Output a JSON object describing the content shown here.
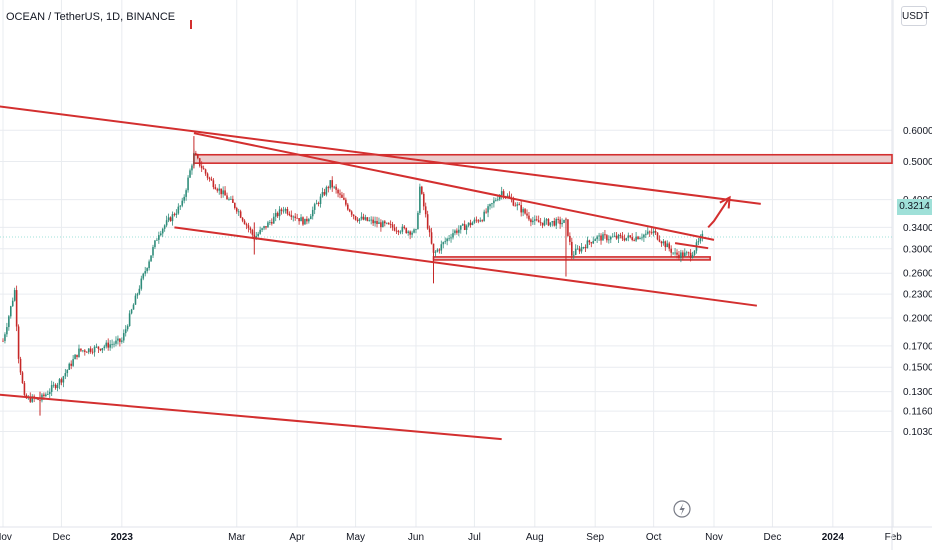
{
  "header": {
    "title": "OCEAN / TetherUS, 1D, BINANCE"
  },
  "currency_button": {
    "label": "USDT"
  },
  "last_price": "0.3214",
  "colors": {
    "background": "#ffffff",
    "trendline": "#d32f2f",
    "zone_fill": "#e8c4c4",
    "candle_up": "#2e8c7a",
    "candle_down": "#c62828",
    "price_tag": "#9fe0d8",
    "grid": "#e9ecf0"
  },
  "icons": {
    "flash": "flash-icon"
  },
  "chart_data": {
    "type": "candlestick",
    "title": "OCEAN / TetherUS, 1D, BINANCE",
    "y_axis": {
      "scale": "log",
      "ticks": [
        "0.6000",
        "0.5000",
        "0.4000",
        "0.3400",
        "0.3000",
        "0.2600",
        "0.2300",
        "0.2000",
        "0.1700",
        "0.1500",
        "0.1300",
        "0.1160",
        "0.1030"
      ]
    },
    "x_axis": {
      "ticks": [
        "Nov",
        "Dec",
        "2023",
        "Mar",
        "Apr",
        "May",
        "Jun",
        "Jul",
        "Aug",
        "Sep",
        "Oct",
        "Nov",
        "Dec",
        "2024",
        "Feb"
      ]
    },
    "price_path": [
      {
        "date": "2022-11-01",
        "price": 0.175
      },
      {
        "date": "2022-11-07",
        "price": 0.235
      },
      {
        "date": "2022-11-09",
        "price": 0.16
      },
      {
        "date": "2022-11-12",
        "price": 0.125
      },
      {
        "date": "2022-11-20",
        "price": 0.124
      },
      {
        "date": "2022-12-01",
        "price": 0.14
      },
      {
        "date": "2022-12-10",
        "price": 0.165
      },
      {
        "date": "2022-12-20",
        "price": 0.168
      },
      {
        "date": "2023-01-01",
        "price": 0.175
      },
      {
        "date": "2023-01-10",
        "price": 0.24
      },
      {
        "date": "2023-01-20",
        "price": 0.33
      },
      {
        "date": "2023-02-01",
        "price": 0.39
      },
      {
        "date": "2023-02-07",
        "price": 0.52
      },
      {
        "date": "2023-02-15",
        "price": 0.45
      },
      {
        "date": "2023-03-01",
        "price": 0.38
      },
      {
        "date": "2023-03-10",
        "price": 0.32
      },
      {
        "date": "2023-03-25",
        "price": 0.38
      },
      {
        "date": "2023-04-05",
        "price": 0.35
      },
      {
        "date": "2023-04-18",
        "price": 0.44
      },
      {
        "date": "2023-05-01",
        "price": 0.36
      },
      {
        "date": "2023-05-20",
        "price": 0.34
      },
      {
        "date": "2023-06-01",
        "price": 0.33
      },
      {
        "date": "2023-06-03",
        "price": 0.43
      },
      {
        "date": "2023-06-10",
        "price": 0.29
      },
      {
        "date": "2023-06-20",
        "price": 0.33
      },
      {
        "date": "2023-07-05",
        "price": 0.36
      },
      {
        "date": "2023-07-15",
        "price": 0.42
      },
      {
        "date": "2023-08-01",
        "price": 0.35
      },
      {
        "date": "2023-08-17",
        "price": 0.35
      },
      {
        "date": "2023-08-20",
        "price": 0.29
      },
      {
        "date": "2023-09-01",
        "price": 0.32
      },
      {
        "date": "2023-09-20",
        "price": 0.32
      },
      {
        "date": "2023-10-01",
        "price": 0.33
      },
      {
        "date": "2023-10-12",
        "price": 0.29
      },
      {
        "date": "2023-10-20",
        "price": 0.29
      },
      {
        "date": "2023-10-26",
        "price": 0.3214
      }
    ],
    "wicks": [
      {
        "date": "2023-02-07",
        "high": 0.58,
        "low": 0.48
      },
      {
        "date": "2023-03-10",
        "high": 0.35,
        "low": 0.29
      },
      {
        "date": "2023-06-10",
        "high": 0.3,
        "low": 0.245
      },
      {
        "date": "2023-08-17",
        "high": 0.36,
        "low": 0.255
      },
      {
        "date": "2022-11-20",
        "high": 0.13,
        "low": 0.113
      }
    ],
    "resistance_zone": [
      0.495,
      0.52
    ],
    "support_zone": [
      0.281,
      0.286
    ],
    "trendlines": [
      {
        "from": {
          "date": "2022-10-01",
          "price": 0.72
        },
        "to": {
          "date": "2023-11-25",
          "price": 0.39
        }
      },
      {
        "from": {
          "date": "2023-02-07",
          "price": 0.59
        },
        "to": {
          "date": "2023-11-01",
          "price": 0.316
        }
      },
      {
        "from": {
          "date": "2023-01-28",
          "price": 0.34
        },
        "to": {
          "date": "2023-11-23",
          "price": 0.215
        }
      },
      {
        "from": {
          "date": "2022-10-28",
          "price": 0.128
        },
        "to": {
          "date": "2023-07-15",
          "price": 0.0985
        }
      },
      {
        "from": {
          "date": "2023-10-12",
          "price": 0.31
        },
        "to": {
          "date": "2023-10-29",
          "price": 0.301
        }
      }
    ],
    "projection": [
      {
        "date": "2023-10-29",
        "price": 0.34
      },
      {
        "date": "2023-11-01",
        "price": 0.353
      },
      {
        "date": "2023-11-09",
        "price": 0.405
      }
    ],
    "current_price": 0.3214,
    "grid": true
  }
}
